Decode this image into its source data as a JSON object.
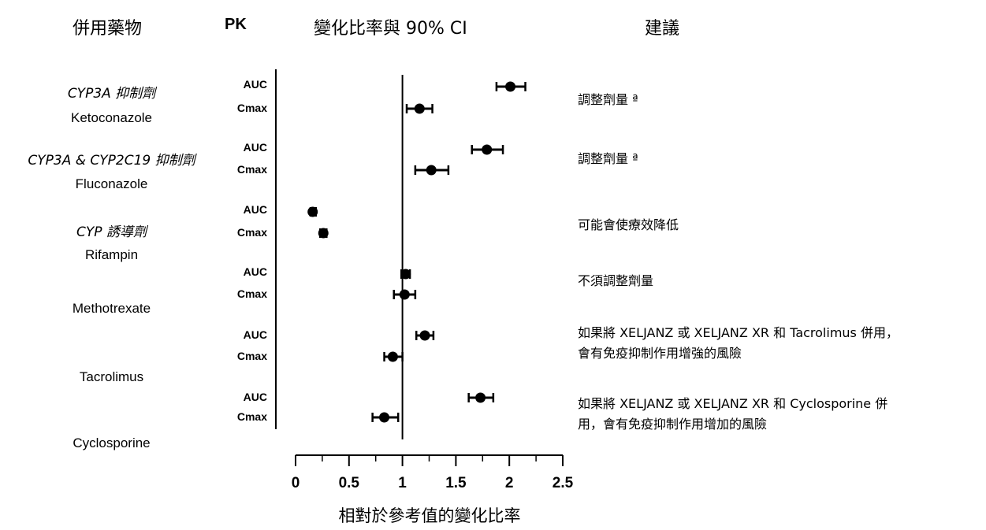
{
  "headers": {
    "drug": "併用藥物",
    "pk": "PK",
    "ratio": "變化比率與 90% CI",
    "recommendation": "建議"
  },
  "groups": [
    {
      "class": "CYP3A 抑制劑",
      "name": "Ketoconazole",
      "recommendation": [
        "調整劑量 ª"
      ]
    },
    {
      "class": "CYP3A & CYP2C19 抑制劑",
      "name": "Fluconazole",
      "recommendation": [
        "調整劑量 ª"
      ]
    },
    {
      "class": "CYP 誘導劑",
      "name": "Rifampin",
      "recommendation": [
        "可能會使療效降低"
      ]
    },
    {
      "class": "",
      "name": "Methotrexate",
      "recommendation": [
        "不須調整劑量"
      ]
    },
    {
      "class": "",
      "name": "Tacrolimus",
      "recommendation": [
        "如果將 XELJANZ 或 XELJANZ XR 和 Tacrolimus 併用，",
        "會有免疫抑制作用增強的風險"
      ]
    },
    {
      "class": "",
      "name": "Cyclosporine",
      "recommendation": [
        "如果將 XELJANZ 或 XELJANZ XR 和 Cyclosporine 併",
        "用，會有免疫抑制作用增加的風險"
      ]
    }
  ],
  "chart_data": {
    "type": "scatter",
    "subtype": "forest-plot",
    "xlabel": "相對於參考值的變化比率",
    "xlim": [
      0,
      2.5
    ],
    "xticks": [
      "0",
      "0.5",
      "1",
      "1.5",
      "2",
      "2.5"
    ],
    "reference_line": 1,
    "pk_labels": [
      "AUC",
      "Cmax"
    ],
    "points": [
      {
        "drug": "Ketoconazole",
        "pk": "AUC",
        "ratio": 2.01,
        "ci": [
          1.88,
          2.15
        ]
      },
      {
        "drug": "Ketoconazole",
        "pk": "Cmax",
        "ratio": 1.16,
        "ci": [
          1.04,
          1.28
        ]
      },
      {
        "drug": "Fluconazole",
        "pk": "AUC",
        "ratio": 1.79,
        "ci": [
          1.65,
          1.94
        ]
      },
      {
        "drug": "Fluconazole",
        "pk": "Cmax",
        "ratio": 1.27,
        "ci": [
          1.12,
          1.43
        ]
      },
      {
        "drug": "Rifampin",
        "pk": "AUC",
        "ratio": 0.16,
        "ci": [
          0.14,
          0.19
        ]
      },
      {
        "drug": "Rifampin",
        "pk": "Cmax",
        "ratio": 0.26,
        "ci": [
          0.23,
          0.29
        ]
      },
      {
        "drug": "Methotrexate",
        "pk": "AUC",
        "ratio": 1.03,
        "ci": [
          0.99,
          1.07
        ]
      },
      {
        "drug": "Methotrexate",
        "pk": "Cmax",
        "ratio": 1.02,
        "ci": [
          0.92,
          1.12
        ]
      },
      {
        "drug": "Tacrolimus",
        "pk": "AUC",
        "ratio": 1.21,
        "ci": [
          1.13,
          1.29
        ]
      },
      {
        "drug": "Tacrolimus",
        "pk": "Cmax",
        "ratio": 0.91,
        "ci": [
          0.83,
          1.0
        ]
      },
      {
        "drug": "Cyclosporine",
        "pk": "AUC",
        "ratio": 1.73,
        "ci": [
          1.62,
          1.85
        ]
      },
      {
        "drug": "Cyclosporine",
        "pk": "Cmax",
        "ratio": 0.83,
        "ci": [
          0.72,
          0.96
        ]
      }
    ]
  }
}
